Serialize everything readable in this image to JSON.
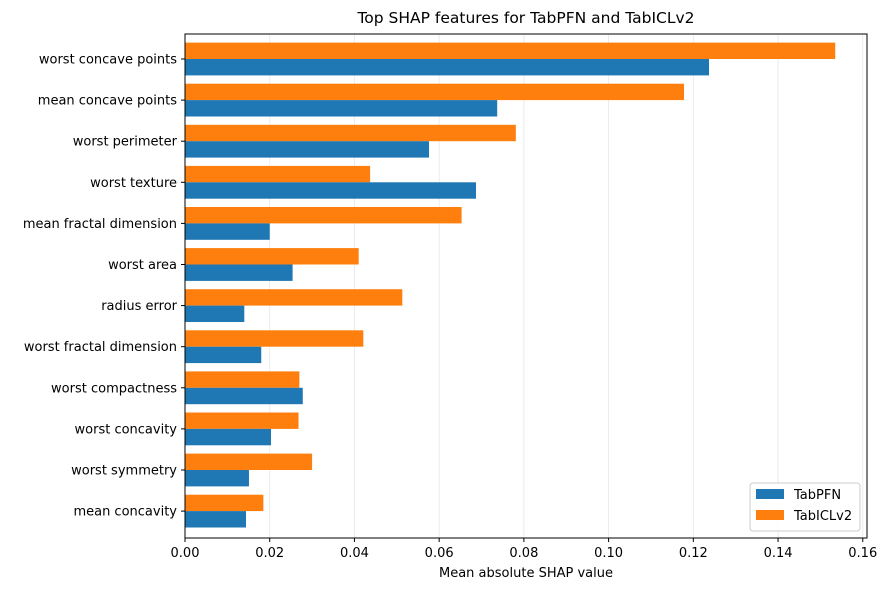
{
  "chart_data": {
    "type": "bar",
    "orientation": "horizontal",
    "title": "Top SHAP features for TabPFN and TabICLv2",
    "xlabel": "Mean absolute SHAP value",
    "ylabel": "",
    "xlim": [
      0,
      0.161
    ],
    "xticks": [
      "0.00",
      "0.02",
      "0.04",
      "0.06",
      "0.08",
      "0.10",
      "0.12",
      "0.14",
      "0.16"
    ],
    "xtick_values": [
      0,
      0.02,
      0.04,
      0.06,
      0.08,
      0.1,
      0.12,
      0.14,
      0.16
    ],
    "grid": "vertical",
    "legend_position": "bottom-right",
    "categories": [
      "worst concave points",
      "mean concave points",
      "worst perimeter",
      "worst texture",
      "mean fractal dimension",
      "worst area",
      "radius error",
      "worst fractal dimension",
      "worst compactness",
      "worst concavity",
      "worst symmetry",
      "mean concavity"
    ],
    "series": [
      {
        "name": "TabPFN",
        "color": "#1f77b4",
        "values": [
          0.1237,
          0.0737,
          0.0576,
          0.0687,
          0.02,
          0.0254,
          0.014,
          0.018,
          0.0278,
          0.0203,
          0.0151,
          0.0144
        ]
      },
      {
        "name": "TabICLv2",
        "color": "#ff7f0e",
        "values": [
          0.1535,
          0.1178,
          0.0781,
          0.0437,
          0.0653,
          0.041,
          0.0513,
          0.0421,
          0.027,
          0.0268,
          0.03,
          0.0185
        ]
      }
    ]
  }
}
